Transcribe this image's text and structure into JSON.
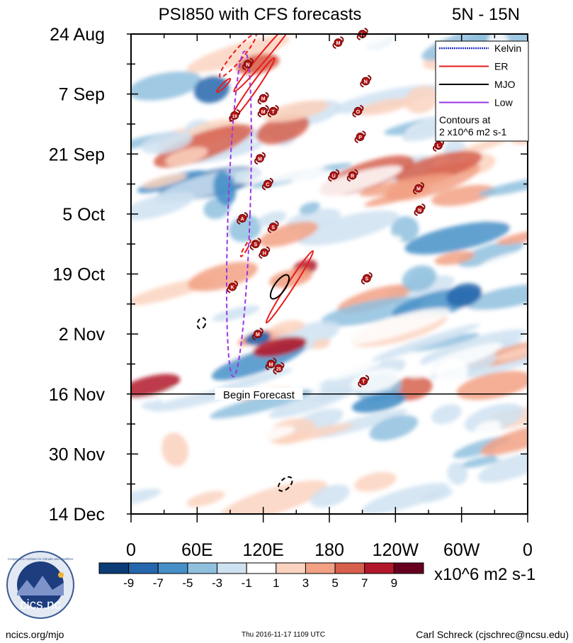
{
  "chart_data": {
    "type": "heatmap",
    "title": "PSI850 with CFS forecasts",
    "region": "5N - 15N",
    "y_tick_labels": [
      "24 Aug",
      "7 Sep",
      "21 Sep",
      "5 Oct",
      "19 Oct",
      "2 Nov",
      "16 Nov",
      "30 Nov",
      "14 Dec"
    ],
    "y_tick_days": [
      0,
      14,
      28,
      42,
      56,
      70,
      84,
      98,
      112
    ],
    "x_tick_labels": [
      "0",
      "60E",
      "120E",
      "180",
      "120W",
      "60W",
      "0"
    ],
    "x_tick_lons": [
      0,
      60,
      120,
      180,
      240,
      300,
      360
    ],
    "forecast_line": {
      "label": "Begin Forecast",
      "day": 84
    },
    "legend": {
      "title": "Contours at\n2 x10^6 m2 s-1",
      "entries": [
        {
          "name": "Kelvin",
          "color": "#2b35c8"
        },
        {
          "name": "ER",
          "color": "#e81c1c"
        },
        {
          "name": "MJO",
          "color": "#000000"
        },
        {
          "name": "Low",
          "color": "#9b35e6"
        }
      ]
    },
    "colorbar": {
      "unit": "x10^6 m2 s-1",
      "labels": [
        "-9",
        "-7",
        "-5",
        "-3",
        "-1",
        "1",
        "3",
        "5",
        "7",
        "9"
      ],
      "colors": [
        "#0b3c76",
        "#2566ad",
        "#4690c8",
        "#8fc0de",
        "#cfe2f1",
        "#ffffff",
        "#fbd3c0",
        "#f2a184",
        "#d6604d",
        "#b2182b",
        "#67001f"
      ]
    },
    "storms": [
      {
        "label": "M",
        "lon": 188,
        "day": 2
      },
      {
        "label": "L",
        "lon": 210,
        "day": 0
      },
      {
        "label": "N",
        "lon": 106,
        "day": 7
      },
      {
        "label": "N",
        "lon": 213,
        "day": 11
      },
      {
        "label": "M",
        "lon": 120,
        "day": 15
      },
      {
        "label": "M",
        "lon": 120,
        "day": 18
      },
      {
        "label": "T",
        "lon": 129,
        "day": 18
      },
      {
        "label": "19",
        "lon": 94,
        "day": 19
      },
      {
        "label": "O",
        "lon": 206,
        "day": 18
      },
      {
        "label": "P",
        "lon": 208,
        "day": 24
      },
      {
        "label": "M",
        "lon": 117,
        "day": 29
      },
      {
        "label": "L",
        "lon": 279,
        "day": 26
      },
      {
        "label": "U",
        "lon": 184,
        "day": 33
      },
      {
        "label": "R",
        "lon": 201,
        "day": 33
      },
      {
        "label": "C",
        "lon": 124,
        "day": 35
      },
      {
        "label": "M",
        "lon": 261,
        "day": 36
      },
      {
        "label": "N",
        "lon": 262,
        "day": 41
      },
      {
        "label": "A",
        "lon": 101,
        "day": 43
      },
      {
        "label": "S",
        "lon": 129,
        "day": 45
      },
      {
        "label": "S",
        "lon": 113,
        "day": 49
      },
      {
        "label": "H",
        "lon": 121,
        "day": 51
      },
      {
        "label": "K",
        "lon": 92,
        "day": 59
      },
      {
        "label": "S",
        "lon": 214,
        "day": 57
      },
      {
        "label": "M",
        "lon": 115,
        "day": 70
      },
      {
        "label": "M",
        "lon": 127,
        "day": 77
      },
      {
        "label": "25",
        "lon": 134,
        "day": 78
      },
      {
        "label": "T",
        "lon": 211,
        "day": 81
      }
    ],
    "contours": [
      {
        "wave": "ER",
        "dashed": true,
        "lon": 97,
        "day": 5,
        "rlon": 4.5,
        "rday": 6.5,
        "angle": 40
      },
      {
        "wave": "ER",
        "dashed": false,
        "lon": 121,
        "day": 5,
        "rlon": 3.5,
        "rday": 11,
        "angle": 40
      },
      {
        "wave": "ER",
        "dashed": false,
        "lon": 84,
        "day": 12,
        "rlon": 1.7,
        "rday": 2.2,
        "angle": 45
      },
      {
        "wave": "ER",
        "dashed": false,
        "lon": 110,
        "day": 13,
        "rlon": 3.2,
        "rday": 9,
        "angle": 35
      },
      {
        "wave": "ER",
        "dashed": true,
        "lon": 104,
        "day": 50,
        "rlon": 1.5,
        "rday": 2.2,
        "angle": 30
      },
      {
        "wave": "ER",
        "dashed": false,
        "lon": 144,
        "day": 59,
        "rlon": 3.0,
        "rday": 10,
        "angle": 33
      },
      {
        "wave": "Low",
        "dashed": true,
        "lon": 98,
        "day": 42,
        "rlon": 10,
        "rday": 38,
        "angle": 2
      },
      {
        "wave": "MJO",
        "dashed": false,
        "lon": 135,
        "day": 59,
        "rlon": 5,
        "rday": 3.3,
        "angle": 35
      },
      {
        "wave": "MJO",
        "dashed": true,
        "lon": 64,
        "day": 67.5,
        "rlon": 3.5,
        "rday": 1.3,
        "angle": 20
      },
      {
        "wave": "MJO",
        "dashed": true,
        "lon": 140,
        "day": 105,
        "rlon": 4.5,
        "rday": 2,
        "angle": 45
      }
    ]
  },
  "footer": {
    "logo_text": "cics.nc",
    "logo_ring_text": "Cooperative Institute for Climate and Satellites",
    "left": "ncics.org/mjo",
    "center": "Thu 2016-11-17 1109 UTC",
    "right": "Carl Schreck (cjschrec@ncsu.edu)"
  }
}
